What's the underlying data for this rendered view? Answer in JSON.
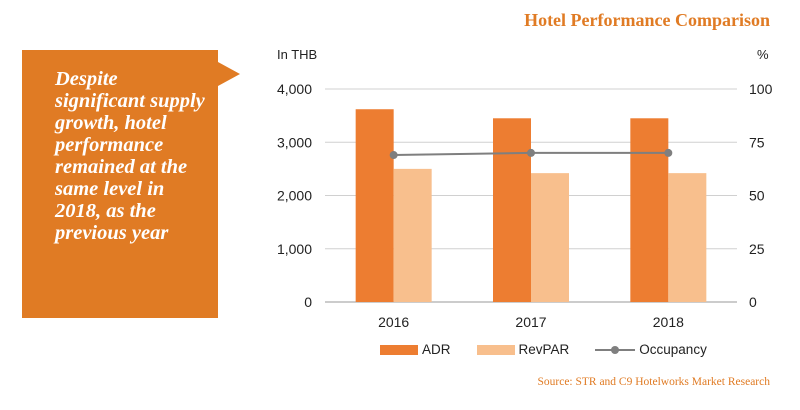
{
  "title": "Hotel Performance Comparison",
  "callout": {
    "text": "Despite\nsignificant supply\ngrowth, hotel\nperformance\nremained at the\nsame level in\n2018, as the\nprevious year"
  },
  "source": "Source: STR and C9 Hotelworks Market Research",
  "colors": {
    "accent": "#e07b24",
    "adr": "#ed7d31",
    "revpar": "#f8bf8d",
    "occupancy": "#7f7f7f"
  },
  "chart_data": {
    "type": "bar",
    "categories": [
      "2016",
      "2017",
      "2018"
    ],
    "series": [
      {
        "name": "ADR",
        "type": "bar",
        "axis": "left",
        "values": [
          3620,
          3450,
          3450
        ]
      },
      {
        "name": "RevPAR",
        "type": "bar",
        "axis": "left",
        "values": [
          2500,
          2420,
          2420
        ]
      },
      {
        "name": "Occupancy",
        "type": "line",
        "axis": "right",
        "values": [
          69,
          70,
          70
        ]
      }
    ],
    "ylabel_left": "In THB",
    "ylabel_right": "%",
    "ylim_left": [
      0,
      4000
    ],
    "ylim_right": [
      0,
      100
    ],
    "yticks_left": [
      "0",
      "1,000",
      "2,000",
      "3,000",
      "4,000"
    ],
    "yticks_right": [
      "0",
      "25",
      "50",
      "75",
      "100"
    ],
    "grid": true,
    "legend": "bottom"
  }
}
